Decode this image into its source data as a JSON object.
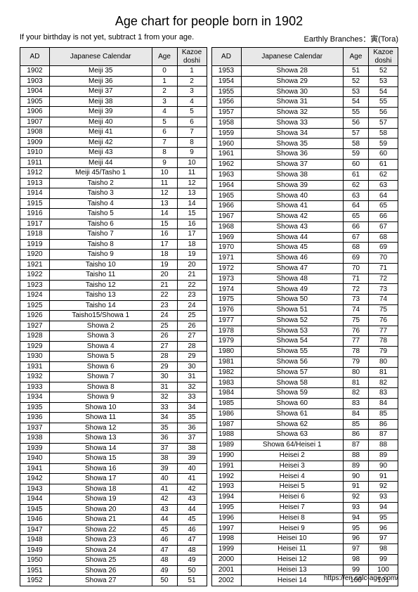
{
  "title": "Age chart for people born in 1902",
  "subtitle_left": "If your birthday is not yet, subtract 1 from your age.",
  "subtitle_right": "Earthly Branches：寅(Tora)",
  "footer_url": "https://en.calc-age.com/",
  "columns": {
    "ad": "AD",
    "jc": "Japanese Calendar",
    "age": "Age",
    "kd_line1": "Kazoe",
    "kd_line2": "doshi"
  },
  "left_rows": [
    [
      "1902",
      "Meiji 35",
      "0",
      "1"
    ],
    [
      "1903",
      "Meiji 36",
      "1",
      "2"
    ],
    [
      "1904",
      "Meiji 37",
      "2",
      "3"
    ],
    [
      "1905",
      "Meiji 38",
      "3",
      "4"
    ],
    [
      "1906",
      "Meiji 39",
      "4",
      "5"
    ],
    [
      "1907",
      "Meiji 40",
      "5",
      "6"
    ],
    [
      "1908",
      "Meiji 41",
      "6",
      "7"
    ],
    [
      "1909",
      "Meiji 42",
      "7",
      "8"
    ],
    [
      "1910",
      "Meiji 43",
      "8",
      "9"
    ],
    [
      "1911",
      "Meiji 44",
      "9",
      "10"
    ],
    [
      "1912",
      "Meiji 45/Tasho 1",
      "10",
      "11"
    ],
    [
      "1913",
      "Taisho 2",
      "11",
      "12"
    ],
    [
      "1914",
      "Taisho 3",
      "12",
      "13"
    ],
    [
      "1915",
      "Taisho 4",
      "13",
      "14"
    ],
    [
      "1916",
      "Taisho 5",
      "14",
      "15"
    ],
    [
      "1917",
      "Taisho 6",
      "15",
      "16"
    ],
    [
      "1918",
      "Taisho 7",
      "16",
      "17"
    ],
    [
      "1919",
      "Taisho 8",
      "17",
      "18"
    ],
    [
      "1920",
      "Taisho 9",
      "18",
      "19"
    ],
    [
      "1921",
      "Taisho 10",
      "19",
      "20"
    ],
    [
      "1922",
      "Taisho 11",
      "20",
      "21"
    ],
    [
      "1923",
      "Taisho 12",
      "21",
      "22"
    ],
    [
      "1924",
      "Taisho 13",
      "22",
      "23"
    ],
    [
      "1925",
      "Taisho 14",
      "23",
      "24"
    ],
    [
      "1926",
      "Taisho15/Showa 1",
      "24",
      "25"
    ],
    [
      "1927",
      "Showa 2",
      "25",
      "26"
    ],
    [
      "1928",
      "Showa 3",
      "26",
      "27"
    ],
    [
      "1929",
      "Showa 4",
      "27",
      "28"
    ],
    [
      "1930",
      "Showa 5",
      "28",
      "29"
    ],
    [
      "1931",
      "Showa 6",
      "29",
      "30"
    ],
    [
      "1932",
      "Showa 7",
      "30",
      "31"
    ],
    [
      "1933",
      "Showa 8",
      "31",
      "32"
    ],
    [
      "1934",
      "Showa 9",
      "32",
      "33"
    ],
    [
      "1935",
      "Showa 10",
      "33",
      "34"
    ],
    [
      "1936",
      "Showa 11",
      "34",
      "35"
    ],
    [
      "1937",
      "Showa 12",
      "35",
      "36"
    ],
    [
      "1938",
      "Showa 13",
      "36",
      "37"
    ],
    [
      "1939",
      "Showa 14",
      "37",
      "38"
    ],
    [
      "1940",
      "Showa 15",
      "38",
      "39"
    ],
    [
      "1941",
      "Showa 16",
      "39",
      "40"
    ],
    [
      "1942",
      "Showa 17",
      "40",
      "41"
    ],
    [
      "1943",
      "Showa 18",
      "41",
      "42"
    ],
    [
      "1944",
      "Showa 19",
      "42",
      "43"
    ],
    [
      "1945",
      "Showa 20",
      "43",
      "44"
    ],
    [
      "1946",
      "Showa 21",
      "44",
      "45"
    ],
    [
      "1947",
      "Showa 22",
      "45",
      "46"
    ],
    [
      "1948",
      "Showa 23",
      "46",
      "47"
    ],
    [
      "1949",
      "Showa 24",
      "47",
      "48"
    ],
    [
      "1950",
      "Showa 25",
      "48",
      "49"
    ],
    [
      "1951",
      "Showa 26",
      "49",
      "50"
    ],
    [
      "1952",
      "Showa 27",
      "50",
      "51"
    ]
  ],
  "right_rows": [
    [
      "1953",
      "Showa 28",
      "51",
      "52"
    ],
    [
      "1954",
      "Showa 29",
      "52",
      "53"
    ],
    [
      "1955",
      "Showa 30",
      "53",
      "54"
    ],
    [
      "1956",
      "Showa 31",
      "54",
      "55"
    ],
    [
      "1957",
      "Showa 32",
      "55",
      "56"
    ],
    [
      "1958",
      "Showa 33",
      "56",
      "57"
    ],
    [
      "1959",
      "Showa 34",
      "57",
      "58"
    ],
    [
      "1960",
      "Showa 35",
      "58",
      "59"
    ],
    [
      "1961",
      "Showa 36",
      "59",
      "60"
    ],
    [
      "1962",
      "Showa 37",
      "60",
      "61"
    ],
    [
      "1963",
      "Showa 38",
      "61",
      "62"
    ],
    [
      "1964",
      "Showa 39",
      "62",
      "63"
    ],
    [
      "1965",
      "Showa 40",
      "63",
      "64"
    ],
    [
      "1966",
      "Showa 41",
      "64",
      "65"
    ],
    [
      "1967",
      "Showa 42",
      "65",
      "66"
    ],
    [
      "1968",
      "Showa 43",
      "66",
      "67"
    ],
    [
      "1969",
      "Showa 44",
      "67",
      "68"
    ],
    [
      "1970",
      "Showa 45",
      "68",
      "69"
    ],
    [
      "1971",
      "Showa 46",
      "69",
      "70"
    ],
    [
      "1972",
      "Showa 47",
      "70",
      "71"
    ],
    [
      "1973",
      "Showa 48",
      "71",
      "72"
    ],
    [
      "1974",
      "Showa 49",
      "72",
      "73"
    ],
    [
      "1975",
      "Showa 50",
      "73",
      "74"
    ],
    [
      "1976",
      "Showa 51",
      "74",
      "75"
    ],
    [
      "1977",
      "Showa 52",
      "75",
      "76"
    ],
    [
      "1978",
      "Showa 53",
      "76",
      "77"
    ],
    [
      "1979",
      "Showa 54",
      "77",
      "78"
    ],
    [
      "1980",
      "Showa 55",
      "78",
      "79"
    ],
    [
      "1981",
      "Showa 56",
      "79",
      "80"
    ],
    [
      "1982",
      "Showa 57",
      "80",
      "81"
    ],
    [
      "1983",
      "Showa 58",
      "81",
      "82"
    ],
    [
      "1984",
      "Showa 59",
      "82",
      "83"
    ],
    [
      "1985",
      "Showa 60",
      "83",
      "84"
    ],
    [
      "1986",
      "Showa 61",
      "84",
      "85"
    ],
    [
      "1987",
      "Showa 62",
      "85",
      "86"
    ],
    [
      "1988",
      "Showa 63",
      "86",
      "87"
    ],
    [
      "1989",
      "Showa 64/Heisei 1",
      "87",
      "88"
    ],
    [
      "1990",
      "Heisei 2",
      "88",
      "89"
    ],
    [
      "1991",
      "Heisei 3",
      "89",
      "90"
    ],
    [
      "1992",
      "Heisei 4",
      "90",
      "91"
    ],
    [
      "1993",
      "Heisei 5",
      "91",
      "92"
    ],
    [
      "1994",
      "Heisei 6",
      "92",
      "93"
    ],
    [
      "1995",
      "Heisei 7",
      "93",
      "94"
    ],
    [
      "1996",
      "Heisei 8",
      "94",
      "95"
    ],
    [
      "1997",
      "Heisei 9",
      "95",
      "96"
    ],
    [
      "1998",
      "Heisei 10",
      "96",
      "97"
    ],
    [
      "1999",
      "Heisei 11",
      "97",
      "98"
    ],
    [
      "2000",
      "Heisei 12",
      "98",
      "99"
    ],
    [
      "2001",
      "Heisei 13",
      "99",
      "100"
    ],
    [
      "2002",
      "Heisei 14",
      "100",
      "101"
    ]
  ]
}
